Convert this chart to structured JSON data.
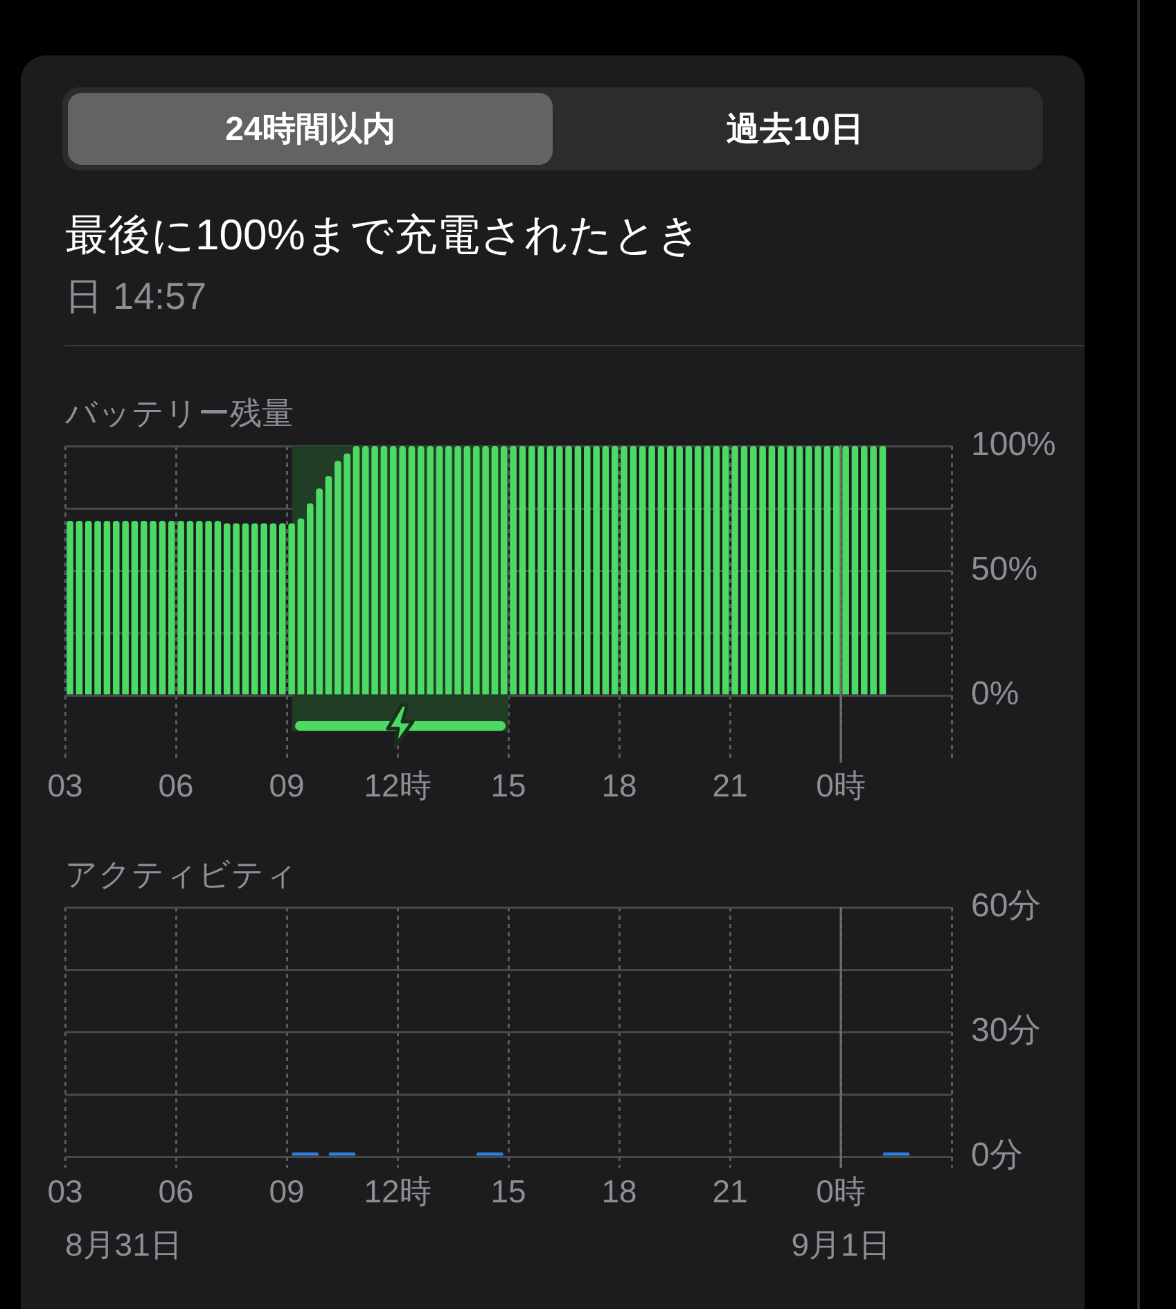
{
  "chart_data": [
    {
      "type": "other",
      "title": "最後に100%まで充電されたとき",
      "subtitle": "日 14:57",
      "annotations": [
        "24時間以内",
        "過去10日"
      ]
    },
    {
      "type": "bar",
      "title": "バッテリー残量",
      "x": [
        "--08-31T03:08",
        "--08-31T03:23",
        "--08-31T03:38",
        "--08-31T03:53",
        "--08-31T04:08",
        "--08-31T04:23",
        "--08-31T04:38",
        "--08-31T04:53",
        "--08-31T05:08",
        "--08-31T05:23",
        "--08-31T05:38",
        "--08-31T05:53",
        "--08-31T06:08",
        "--08-31T06:23",
        "--08-31T06:38",
        "--08-31T06:53",
        "--08-31T07:08",
        "--08-31T07:23",
        "--08-31T07:38",
        "--08-31T07:53",
        "--08-31T08:08",
        "--08-31T08:23",
        "--08-31T08:38",
        "--08-31T08:53",
        "--08-31T09:08",
        "--08-31T09:23",
        "--08-31T09:38",
        "--08-31T09:53",
        "--08-31T10:08",
        "--08-31T10:23",
        "--08-31T10:38",
        "--08-31T10:53",
        "--08-31T11:08",
        "--08-31T11:23",
        "--08-31T11:38",
        "--08-31T11:53",
        "--08-31T12:08",
        "--08-31T12:23",
        "--08-31T12:38",
        "--08-31T12:53",
        "--08-31T13:08",
        "--08-31T13:23",
        "--08-31T13:38",
        "--08-31T13:53",
        "--08-31T14:08",
        "--08-31T14:23",
        "--08-31T14:38",
        "--08-31T14:53",
        "--08-31T15:08",
        "--08-31T15:23",
        "--08-31T15:38",
        "--08-31T15:53",
        "--08-31T16:08",
        "--08-31T16:23",
        "--08-31T16:38",
        "--08-31T16:53",
        "--08-31T17:08",
        "--08-31T17:23",
        "--08-31T17:38",
        "--08-31T17:53",
        "--08-31T18:08",
        "--08-31T18:23",
        "--08-31T18:38",
        "--08-31T18:53",
        "--08-31T19:08",
        "--08-31T19:23",
        "--08-31T19:38",
        "--08-31T19:53",
        "--08-31T20:08",
        "--08-31T20:23",
        "--08-31T20:38",
        "--08-31T20:53",
        "--08-31T21:08",
        "--08-31T21:23",
        "--08-31T21:38",
        "--08-31T21:53",
        "--08-31T22:08",
        "--08-31T22:23",
        "--08-31T22:38",
        "--08-31T22:53",
        "--08-31T23:08",
        "--08-31T23:23",
        "--08-31T23:38",
        "--08-31T23:53",
        "--09-01T00:08",
        "--09-01T00:23",
        "--09-01T00:38",
        "--09-01T00:53",
        "--09-01T01:08"
      ],
      "series": [
        {
          "color": "#4cd964",
          "values": [
            70,
            70,
            70,
            70,
            70,
            70,
            70,
            70,
            70,
            70,
            70,
            70,
            70,
            70,
            70,
            70,
            70,
            69,
            69,
            69,
            69,
            69,
            69,
            69,
            69,
            71,
            77,
            83,
            88,
            94,
            97,
            100,
            100,
            100,
            100,
            100,
            100,
            100,
            100,
            100,
            100,
            100,
            100,
            100,
            100,
            100,
            100,
            100,
            100,
            100,
            100,
            100,
            100,
            100,
            100,
            100,
            100,
            100,
            100,
            100,
            100,
            100,
            100,
            100,
            100,
            100,
            100,
            100,
            100,
            100,
            100,
            100,
            100,
            100,
            100,
            100,
            100,
            100,
            100,
            100,
            100,
            100,
            100,
            100,
            100,
            100,
            100,
            100,
            100
          ]
        }
      ],
      "xlim": [
        "--08-31T03:00",
        "--09-01T03:00"
      ],
      "xticks": [
        {
          "value": "--08-31T03:00",
          "label": "03"
        },
        {
          "value": "--08-31T06:00",
          "label": "06"
        },
        {
          "value": "--08-31T09:00",
          "label": "09"
        },
        {
          "value": "--08-31T12:00",
          "label": "12時"
        },
        {
          "value": "--08-31T15:00",
          "label": "15"
        },
        {
          "value": "--08-31T18:00",
          "label": "18"
        },
        {
          "value": "--08-31T21:00",
          "label": "21"
        },
        {
          "value": "--09-01T00:00",
          "label": "0時"
        },
        {
          "value": "--09-01T03:00",
          "label": null
        }
      ],
      "ylim": [
        0,
        100
      ],
      "yticks": [
        {
          "value": 0,
          "label": "0%"
        },
        {
          "value": 25,
          "label": null
        },
        {
          "value": 50,
          "label": "50%"
        },
        {
          "value": 75,
          "label": null
        },
        {
          "value": 100,
          "label": "100%"
        }
      ],
      "grid": true,
      "bands": [
        {
          "axis": "x",
          "from": "--08-31T09:09",
          "to": "--08-31T15:00",
          "color": "#213d26"
        }
      ],
      "ref_lines": [
        {
          "axis": "x",
          "value": "--09-01T00:00"
        }
      ]
    },
    {
      "type": "bar",
      "title": "アクティビティ",
      "x": [
        "--08-31T09:30",
        "--08-31T10:30",
        "--08-31T14:30",
        "--09-01T01:30"
      ],
      "series": [
        {
          "color": "#2f7fe0",
          "values": [
            1,
            1,
            1,
            1
          ]
        }
      ],
      "xlim": [
        "--08-31T03:00",
        "--09-01T03:00"
      ],
      "xticks": [
        {
          "value": "--08-31T03:00",
          "label": "03"
        },
        {
          "value": "--08-31T06:00",
          "label": "06"
        },
        {
          "value": "--08-31T09:00",
          "label": "09"
        },
        {
          "value": "--08-31T12:00",
          "label": "12時"
        },
        {
          "value": "--08-31T15:00",
          "label": "15"
        },
        {
          "value": "--08-31T18:00",
          "label": "18"
        },
        {
          "value": "--08-31T21:00",
          "label": "21"
        },
        {
          "value": "--09-01T00:00",
          "label": "0時"
        },
        {
          "value": "--09-01T03:00",
          "label": null
        }
      ],
      "ylim": [
        0,
        60
      ],
      "yticks": [
        {
          "value": 0,
          "label": "0分"
        },
        {
          "value": 15,
          "label": null
        },
        {
          "value": 30,
          "label": "30分"
        },
        {
          "value": 45,
          "label": null
        },
        {
          "value": 60,
          "label": "60分"
        }
      ],
      "grid": true,
      "ref_lines": [
        {
          "axis": "x",
          "value": "--09-01T00:00",
          "label": "9月1日"
        }
      ],
      "annotations": [
        "8月31日"
      ]
    }
  ]
}
